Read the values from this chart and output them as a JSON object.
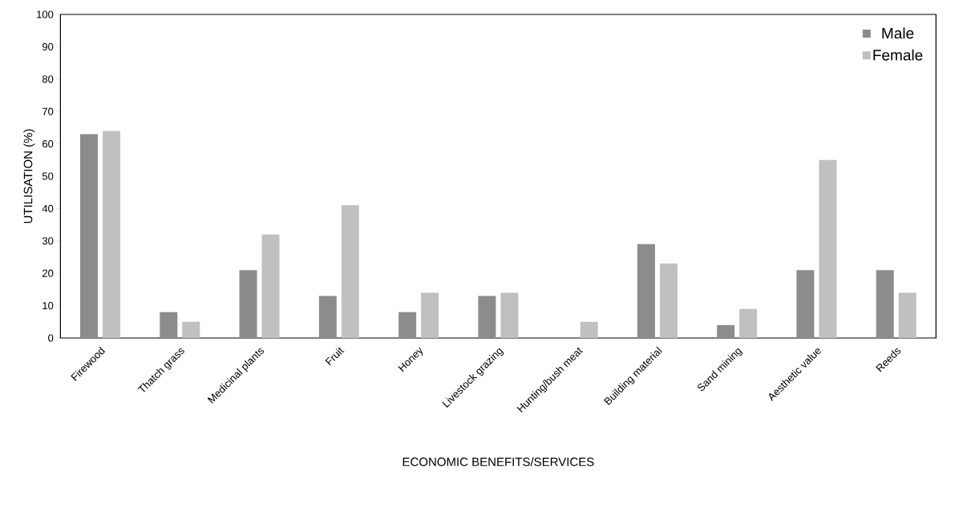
{
  "chart_data": {
    "type": "bar",
    "xlabel": "ECONOMIC BENEFITS/SERVICES",
    "ylabel": "UTILISATION (%)",
    "categories": [
      "Firewood",
      "Thatch grass",
      "Medicinal plants",
      "Fruit",
      "Honey",
      "Livestock grazing",
      "Hunting/bush meat",
      "Building material",
      "Sand mining",
      "Aesthetic value",
      "Reeds"
    ],
    "series": [
      {
        "name": "Male",
        "color": "#8c8c8c",
        "values": [
          63,
          8,
          21,
          13,
          8,
          13,
          0,
          29,
          4,
          21,
          21
        ]
      },
      {
        "name": "Female",
        "color": "#c0c0c0",
        "values": [
          64,
          5,
          32,
          41,
          14,
          14,
          5,
          23,
          9,
          55,
          14
        ]
      }
    ],
    "ylim": [
      0,
      100
    ],
    "yticks": [
      0,
      10,
      20,
      30,
      40,
      50,
      60,
      70,
      80,
      90,
      100
    ],
    "grid": false,
    "legend": "top right"
  }
}
